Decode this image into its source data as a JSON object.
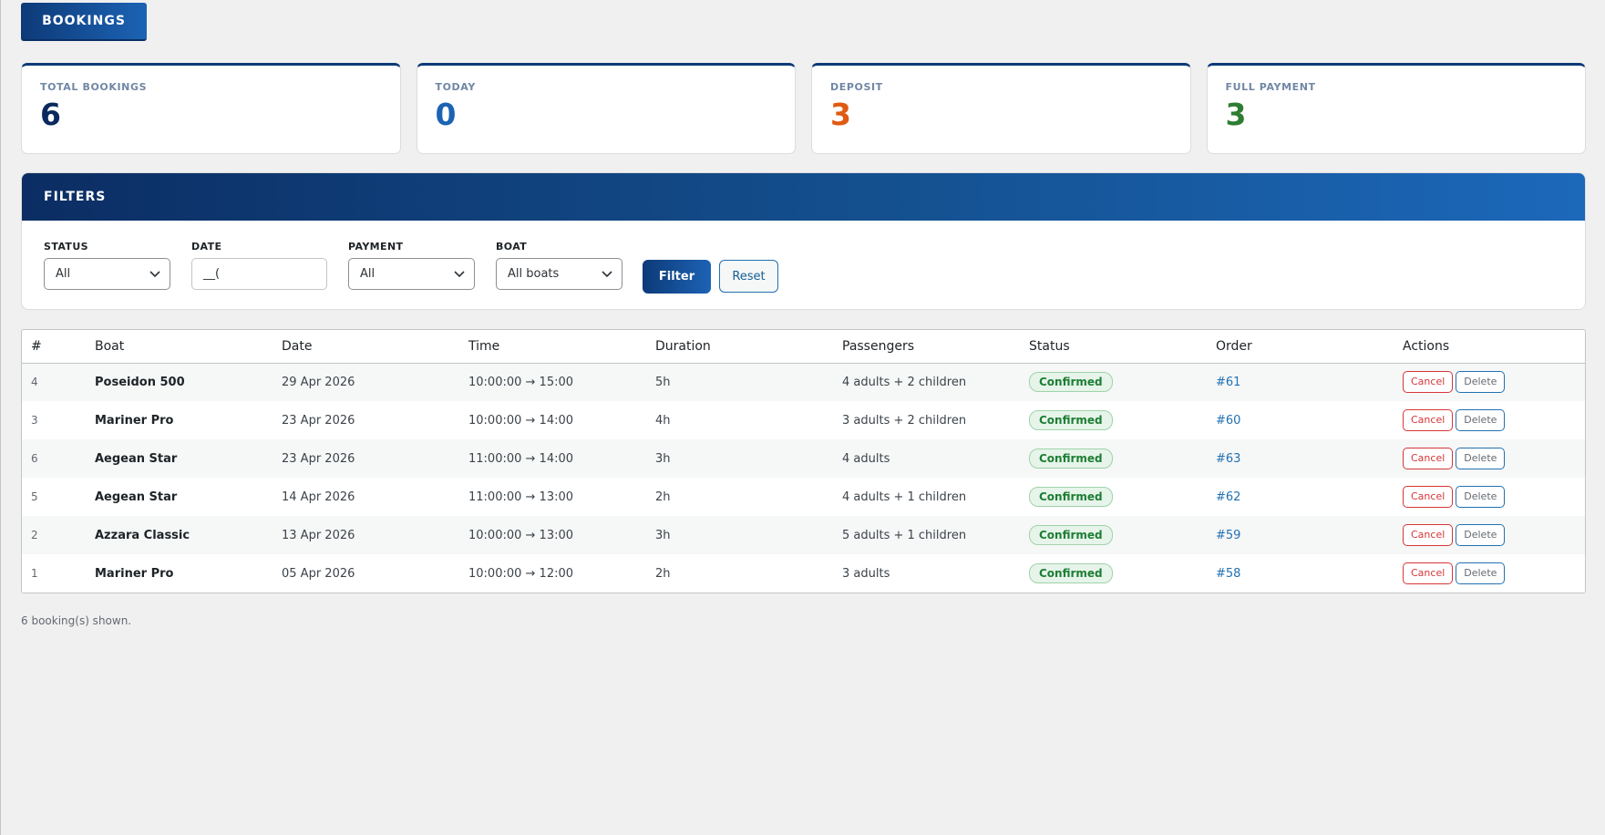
{
  "page_tab": "BOOKINGS",
  "stats": [
    {
      "label": "TOTAL BOOKINGS",
      "value": "6",
      "color": "#0a2a5e"
    },
    {
      "label": "TODAY",
      "value": "0",
      "color": "#1c63b4"
    },
    {
      "label": "DEPOSIT",
      "value": "3",
      "color": "#e05a12"
    },
    {
      "label": "FULL PAYMENT",
      "value": "3",
      "color": "#2e7d32"
    }
  ],
  "filters": {
    "title": "FILTERS",
    "status": {
      "label": "STATUS",
      "value": "All"
    },
    "date": {
      "label": "DATE",
      "value": "__("
    },
    "payment": {
      "label": "PAYMENT",
      "value": "All"
    },
    "boat": {
      "label": "BOAT",
      "value": "All boats"
    },
    "filter_label": "Filter",
    "reset_label": "Reset"
  },
  "table": {
    "headers": [
      "#",
      "Boat",
      "Date",
      "Time",
      "Duration",
      "Passengers",
      "Status",
      "Order",
      "Actions"
    ],
    "rows": [
      {
        "id": "4",
        "boat": "Poseidon 500",
        "date": "29 Apr 2026",
        "time": "10:00:00 → 15:00",
        "duration": "5h",
        "passengers": "4 adults + 2 children",
        "status": "Confirmed",
        "order": "#61"
      },
      {
        "id": "3",
        "boat": "Mariner Pro",
        "date": "23 Apr 2026",
        "time": "10:00:00 → 14:00",
        "duration": "4h",
        "passengers": "3 adults + 2 children",
        "status": "Confirmed",
        "order": "#60"
      },
      {
        "id": "6",
        "boat": "Aegean Star",
        "date": "23 Apr 2026",
        "time": "11:00:00 → 14:00",
        "duration": "3h",
        "passengers": "4 adults",
        "status": "Confirmed",
        "order": "#63"
      },
      {
        "id": "5",
        "boat": "Aegean Star",
        "date": "14 Apr 2026",
        "time": "11:00:00 → 13:00",
        "duration": "2h",
        "passengers": "4 adults + 1 children",
        "status": "Confirmed",
        "order": "#62"
      },
      {
        "id": "2",
        "boat": "Azzara Classic",
        "date": "13 Apr 2026",
        "time": "10:00:00 → 13:00",
        "duration": "3h",
        "passengers": "5 adults + 1 children",
        "status": "Confirmed",
        "order": "#59"
      },
      {
        "id": "1",
        "boat": "Mariner Pro",
        "date": "05 Apr 2026",
        "time": "10:00:00 → 12:00",
        "duration": "2h",
        "passengers": "3 adults",
        "status": "Confirmed",
        "order": "#58"
      }
    ],
    "actions": {
      "cancel": "Cancel",
      "delete": "Delete"
    }
  },
  "footer": "6 booking(s) shown."
}
